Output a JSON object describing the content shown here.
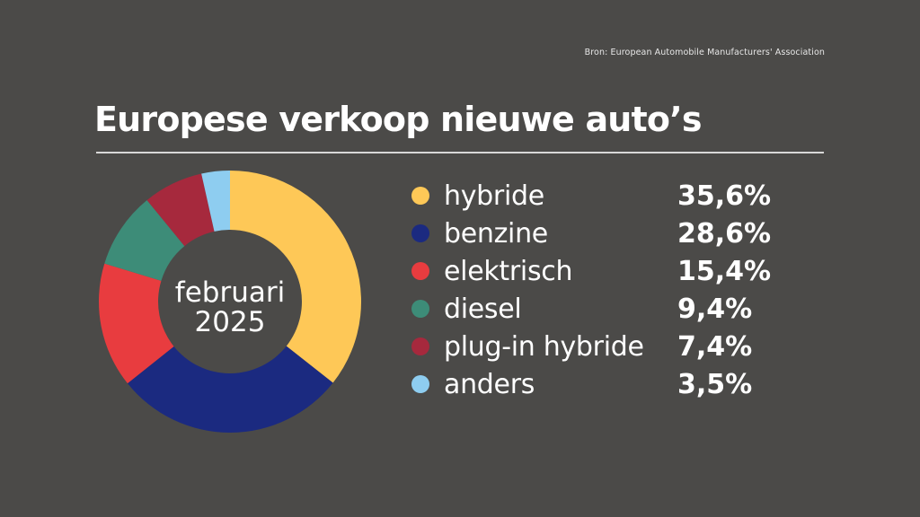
{
  "source": "Bron: European Automobile Manufacturers' Association",
  "chart_data": {
    "type": "pie",
    "title": "Europese verkoop nieuwe auto’s",
    "center_label": [
      "februari",
      "2025"
    ],
    "categories": [
      "hybride",
      "benzine",
      "elektrisch",
      "diesel",
      "plug-in hybride",
      "anders"
    ],
    "values": [
      35.6,
      28.6,
      15.4,
      9.4,
      7.4,
      3.5
    ],
    "value_labels": [
      "35,6%",
      "28,6%",
      "15,4%",
      "9,4%",
      "7,4%",
      "3,5%"
    ],
    "colors": [
      "#fec857",
      "#1b2a80",
      "#e83c3f",
      "#3d8c78",
      "#a6293d",
      "#8ecdf0"
    ],
    "legend_position": "right"
  }
}
